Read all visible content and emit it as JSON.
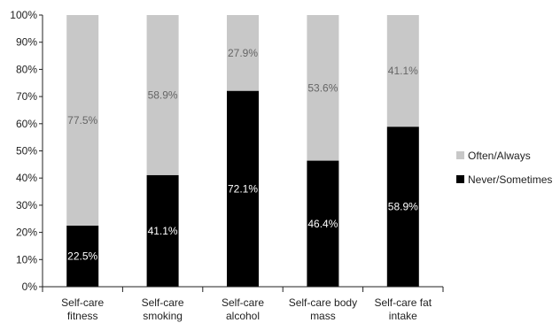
{
  "chart_data": {
    "type": "bar",
    "stacked": true,
    "categories": [
      [
        "Self-care",
        "fitness"
      ],
      [
        "Self-care",
        "smoking"
      ],
      [
        "Self-care",
        "alcohol"
      ],
      [
        "Self-care body",
        "mass"
      ],
      [
        "Self-care fat",
        "intake"
      ]
    ],
    "series": [
      {
        "name": "Never/Sometimes",
        "color": "#000000",
        "label_color": "#ffffff",
        "values": [
          22.5,
          41.1,
          72.1,
          46.4,
          58.9
        ],
        "labels": [
          "22.5%",
          "41.1%",
          "72.1%",
          "46.4%",
          "58.9%"
        ]
      },
      {
        "name": "Often/Always",
        "color": "#c8c8c8",
        "label_color": "#666666",
        "values": [
          77.5,
          58.9,
          27.9,
          53.6,
          41.1
        ],
        "labels": [
          "77.5%",
          "58.9%",
          "27.9%",
          "53.6%",
          "41.1%"
        ]
      }
    ],
    "ylim": [
      0,
      100
    ],
    "yticks": [
      "0%",
      "10%",
      "20%",
      "30%",
      "40%",
      "50%",
      "60%",
      "70%",
      "80%",
      "90%",
      "100%"
    ],
    "legend": [
      "Often/Always",
      "Never/Sometimes"
    ],
    "legend_position": "right",
    "grid": false,
    "title": "",
    "xlabel": "",
    "ylabel": ""
  }
}
